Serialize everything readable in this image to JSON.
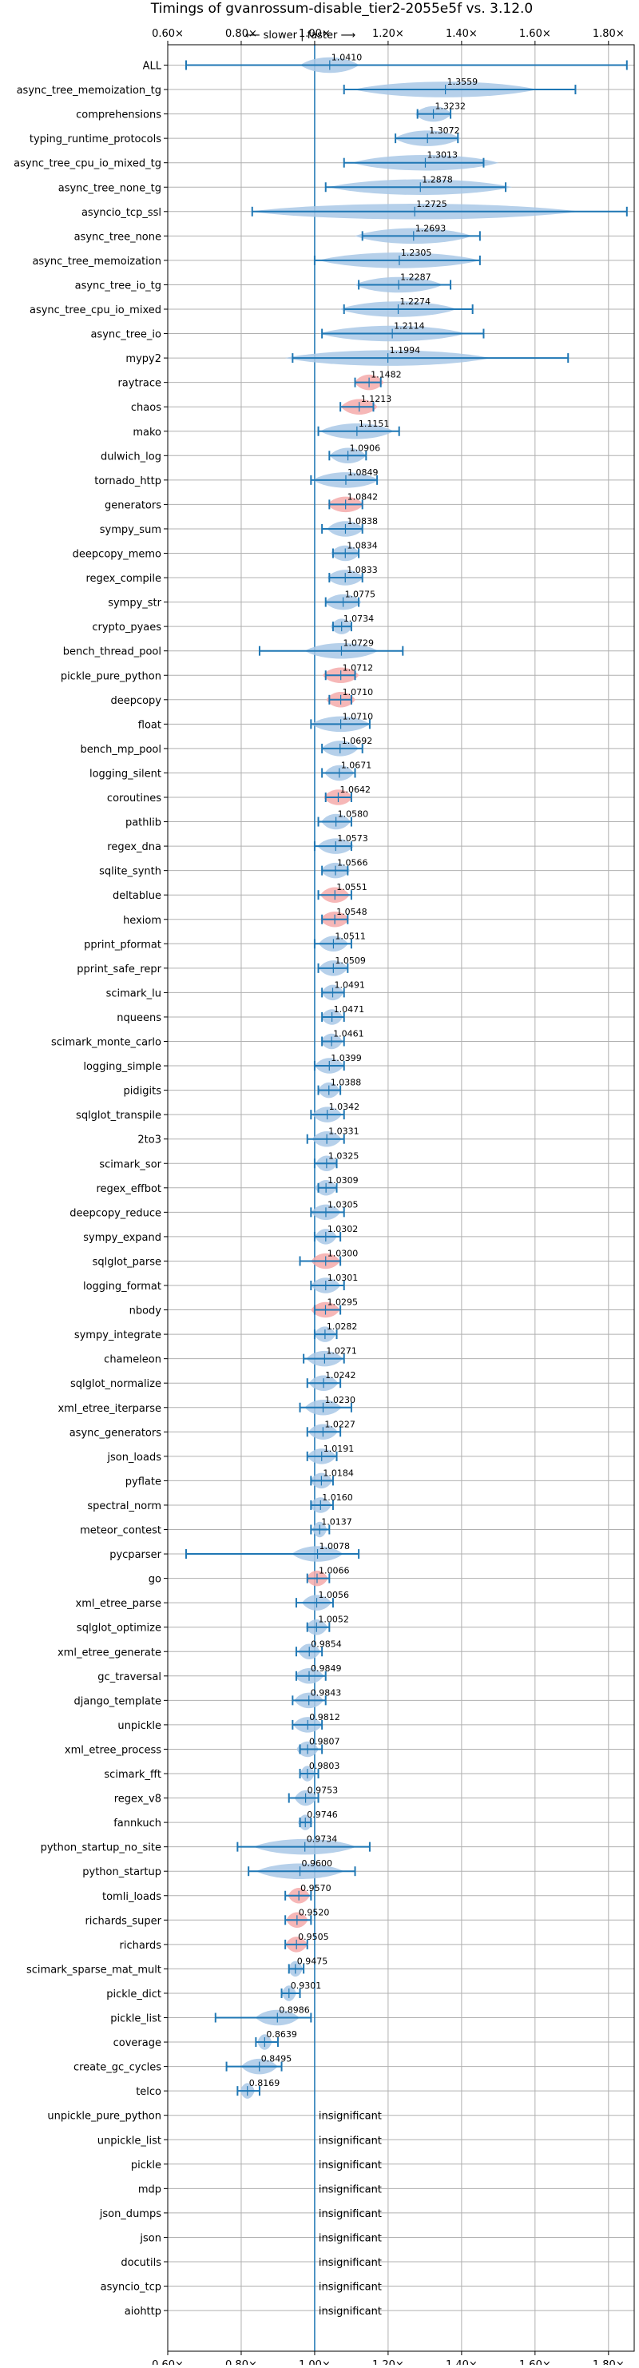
{
  "chart_data": {
    "type": "violin",
    "title": "Timings of gvanrossum-disable_tier2-2055e5f vs. 3.12.0",
    "direction_label": "⟵ slower | faster ⟶",
    "x_range": [
      0.6,
      1.87
    ],
    "x_ticks": [
      0.6,
      0.8,
      1.0,
      1.2,
      1.4,
      1.6,
      1.8
    ],
    "x_tick_labels": [
      "0.60×",
      "0.80×",
      "1.00×",
      "1.20×",
      "1.40×",
      "1.60×",
      "1.80×"
    ],
    "grid": true,
    "reference_line": 1.0,
    "colors": {
      "violin": "#a9c8e6",
      "violin_significant_slow": "#f4aaaa",
      "errorbar": "#1f77b4",
      "grid": "#b0b0b0"
    },
    "benchmarks": [
      {
        "name": "ALL",
        "value": 1.041,
        "label": "1.0410",
        "whisker": [
          0.65,
          1.85
        ],
        "spread": 0.08,
        "color": "blue"
      },
      {
        "name": "async_tree_memoization_tg",
        "value": 1.3559,
        "label": "1.3559",
        "whisker": [
          1.08,
          1.71
        ],
        "spread": 0.25,
        "color": "blue"
      },
      {
        "name": "comprehensions",
        "value": 1.3232,
        "label": "1.3232",
        "whisker": [
          1.28,
          1.37
        ],
        "spread": 0.05,
        "color": "blue"
      },
      {
        "name": "typing_runtime_protocols",
        "value": 1.3072,
        "label": "1.3072",
        "whisker": [
          1.22,
          1.39
        ],
        "spread": 0.09,
        "color": "blue"
      },
      {
        "name": "async_tree_cpu_io_mixed_tg",
        "value": 1.3013,
        "label": "1.3013",
        "whisker": [
          1.08,
          1.46
        ],
        "spread": 0.2,
        "color": "blue"
      },
      {
        "name": "async_tree_none_tg",
        "value": 1.2878,
        "label": "1.2878",
        "whisker": [
          1.03,
          1.52
        ],
        "spread": 0.25,
        "color": "blue"
      },
      {
        "name": "asyncio_tcp_ssl",
        "value": 1.2725,
        "label": "1.2725",
        "whisker": [
          0.83,
          1.85
        ],
        "spread": 0.45,
        "color": "blue"
      },
      {
        "name": "async_tree_none",
        "value": 1.2693,
        "label": "1.2693",
        "whisker": [
          1.13,
          1.45
        ],
        "spread": 0.16,
        "color": "blue"
      },
      {
        "name": "async_tree_memoization",
        "value": 1.2305,
        "label": "1.2305",
        "whisker": [
          1.0,
          1.45
        ],
        "spread": 0.22,
        "color": "blue"
      },
      {
        "name": "async_tree_io_tg",
        "value": 1.2287,
        "label": "1.2287",
        "whisker": [
          1.12,
          1.37
        ],
        "spread": 0.12,
        "color": "blue"
      },
      {
        "name": "async_tree_cpu_io_mixed",
        "value": 1.2274,
        "label": "1.2274",
        "whisker": [
          1.08,
          1.43
        ],
        "spread": 0.16,
        "color": "blue"
      },
      {
        "name": "async_tree_io",
        "value": 1.2114,
        "label": "1.2114",
        "whisker": [
          1.02,
          1.46
        ],
        "spread": 0.2,
        "color": "blue"
      },
      {
        "name": "mypy2",
        "value": 1.1994,
        "label": "1.1994",
        "whisker": [
          0.94,
          1.69
        ],
        "spread": 0.28,
        "color": "blue"
      },
      {
        "name": "raytrace",
        "value": 1.1482,
        "label": "1.1482",
        "whisker": [
          1.11,
          1.18
        ],
        "spread": 0.04,
        "color": "red"
      },
      {
        "name": "chaos",
        "value": 1.1213,
        "label": "1.1213",
        "whisker": [
          1.07,
          1.16
        ],
        "spread": 0.05,
        "color": "red"
      },
      {
        "name": "mako",
        "value": 1.1151,
        "label": "1.1151",
        "whisker": [
          1.01,
          1.23
        ],
        "spread": 0.1,
        "color": "blue"
      },
      {
        "name": "dulwich_log",
        "value": 1.0906,
        "label": "1.0906",
        "whisker": [
          1.04,
          1.14
        ],
        "spread": 0.05,
        "color": "blue"
      },
      {
        "name": "tornado_http",
        "value": 1.0849,
        "label": "1.0849",
        "whisker": [
          0.99,
          1.17
        ],
        "spread": 0.09,
        "color": "blue"
      },
      {
        "name": "generators",
        "value": 1.0842,
        "label": "1.0842",
        "whisker": [
          1.04,
          1.13
        ],
        "spread": 0.05,
        "color": "red"
      },
      {
        "name": "sympy_sum",
        "value": 1.0838,
        "label": "1.0838",
        "whisker": [
          1.02,
          1.13
        ],
        "spread": 0.05,
        "color": "blue"
      },
      {
        "name": "deepcopy_memo",
        "value": 1.0834,
        "label": "1.0834",
        "whisker": [
          1.05,
          1.12
        ],
        "spread": 0.04,
        "color": "blue"
      },
      {
        "name": "regex_compile",
        "value": 1.0833,
        "label": "1.0833",
        "whisker": [
          1.04,
          1.13
        ],
        "spread": 0.05,
        "color": "blue"
      },
      {
        "name": "sympy_str",
        "value": 1.0775,
        "label": "1.0775",
        "whisker": [
          1.03,
          1.12
        ],
        "spread": 0.05,
        "color": "blue"
      },
      {
        "name": "crypto_pyaes",
        "value": 1.0734,
        "label": "1.0734",
        "whisker": [
          1.05,
          1.1
        ],
        "spread": 0.03,
        "color": "blue"
      },
      {
        "name": "bench_thread_pool",
        "value": 1.0729,
        "label": "1.0729",
        "whisker": [
          0.85,
          1.24
        ],
        "spread": 0.1,
        "color": "blue"
      },
      {
        "name": "pickle_pure_python",
        "value": 1.0712,
        "label": "1.0712",
        "whisker": [
          1.03,
          1.11
        ],
        "spread": 0.05,
        "color": "red"
      },
      {
        "name": "deepcopy",
        "value": 1.071,
        "label": "1.0710",
        "whisker": [
          1.04,
          1.1
        ],
        "spread": 0.04,
        "color": "red"
      },
      {
        "name": "float",
        "value": 1.071,
        "label": "1.0710",
        "whisker": [
          0.99,
          1.15
        ],
        "spread": 0.08,
        "color": "blue"
      },
      {
        "name": "bench_mp_pool",
        "value": 1.0692,
        "label": "1.0692",
        "whisker": [
          1.02,
          1.13
        ],
        "spread": 0.05,
        "color": "blue"
      },
      {
        "name": "logging_silent",
        "value": 1.0671,
        "label": "1.0671",
        "whisker": [
          1.02,
          1.11
        ],
        "spread": 0.04,
        "color": "blue"
      },
      {
        "name": "coroutines",
        "value": 1.0642,
        "label": "1.0642",
        "whisker": [
          1.03,
          1.1
        ],
        "spread": 0.04,
        "color": "red"
      },
      {
        "name": "pathlib",
        "value": 1.058,
        "label": "1.0580",
        "whisker": [
          1.01,
          1.1
        ],
        "spread": 0.04,
        "color": "blue"
      },
      {
        "name": "regex_dna",
        "value": 1.0573,
        "label": "1.0573",
        "whisker": [
          1.0,
          1.1
        ],
        "spread": 0.05,
        "color": "blue"
      },
      {
        "name": "sqlite_synth",
        "value": 1.0566,
        "label": "1.0566",
        "whisker": [
          1.02,
          1.09
        ],
        "spread": 0.04,
        "color": "blue"
      },
      {
        "name": "deltablue",
        "value": 1.0551,
        "label": "1.0551",
        "whisker": [
          1.01,
          1.1
        ],
        "spread": 0.04,
        "color": "red"
      },
      {
        "name": "hexiom",
        "value": 1.0548,
        "label": "1.0548",
        "whisker": [
          1.02,
          1.09
        ],
        "spread": 0.04,
        "color": "red"
      },
      {
        "name": "pprint_pformat",
        "value": 1.0511,
        "label": "1.0511",
        "whisker": [
          1.0,
          1.1
        ],
        "spread": 0.04,
        "color": "blue"
      },
      {
        "name": "pprint_safe_repr",
        "value": 1.0509,
        "label": "1.0509",
        "whisker": [
          1.01,
          1.09
        ],
        "spread": 0.04,
        "color": "blue"
      },
      {
        "name": "scimark_lu",
        "value": 1.0491,
        "label": "1.0491",
        "whisker": [
          1.02,
          1.08
        ],
        "spread": 0.03,
        "color": "blue"
      },
      {
        "name": "nqueens",
        "value": 1.0471,
        "label": "1.0471",
        "whisker": [
          1.02,
          1.08
        ],
        "spread": 0.03,
        "color": "blue"
      },
      {
        "name": "scimark_monte_carlo",
        "value": 1.0461,
        "label": "1.0461",
        "whisker": [
          1.02,
          1.08
        ],
        "spread": 0.03,
        "color": "blue"
      },
      {
        "name": "logging_simple",
        "value": 1.0399,
        "label": "1.0399",
        "whisker": [
          1.0,
          1.08
        ],
        "spread": 0.04,
        "color": "blue"
      },
      {
        "name": "pidigits",
        "value": 1.0388,
        "label": "1.0388",
        "whisker": [
          1.01,
          1.07
        ],
        "spread": 0.03,
        "color": "blue"
      },
      {
        "name": "sqlglot_transpile",
        "value": 1.0342,
        "label": "1.0342",
        "whisker": [
          0.99,
          1.08
        ],
        "spread": 0.04,
        "color": "blue"
      },
      {
        "name": "2to3",
        "value": 1.0331,
        "label": "1.0331",
        "whisker": [
          0.98,
          1.08
        ],
        "spread": 0.04,
        "color": "blue"
      },
      {
        "name": "scimark_sor",
        "value": 1.0325,
        "label": "1.0325",
        "whisker": [
          1.0,
          1.06
        ],
        "spread": 0.03,
        "color": "blue"
      },
      {
        "name": "regex_effbot",
        "value": 1.0309,
        "label": "1.0309",
        "whisker": [
          1.01,
          1.06
        ],
        "spread": 0.03,
        "color": "blue"
      },
      {
        "name": "deepcopy_reduce",
        "value": 1.0305,
        "label": "1.0305",
        "whisker": [
          0.99,
          1.08
        ],
        "spread": 0.04,
        "color": "blue"
      },
      {
        "name": "sympy_expand",
        "value": 1.0302,
        "label": "1.0302",
        "whisker": [
          1.0,
          1.07
        ],
        "spread": 0.03,
        "color": "blue"
      },
      {
        "name": "sqlglot_parse",
        "value": 1.03,
        "label": "1.0300",
        "whisker": [
          0.96,
          1.07
        ],
        "spread": 0.04,
        "color": "red"
      },
      {
        "name": "logging_format",
        "value": 1.0301,
        "label": "1.0301",
        "whisker": [
          0.99,
          1.08
        ],
        "spread": 0.04,
        "color": "blue"
      },
      {
        "name": "nbody",
        "value": 1.0295,
        "label": "1.0295",
        "whisker": [
          1.0,
          1.07
        ],
        "spread": 0.04,
        "color": "red"
      },
      {
        "name": "sympy_integrate",
        "value": 1.0282,
        "label": "1.0282",
        "whisker": [
          1.0,
          1.06
        ],
        "spread": 0.03,
        "color": "blue"
      },
      {
        "name": "chameleon",
        "value": 1.0271,
        "label": "1.0271",
        "whisker": [
          0.97,
          1.08
        ],
        "spread": 0.05,
        "color": "blue"
      },
      {
        "name": "sqlglot_normalize",
        "value": 1.0242,
        "label": "1.0242",
        "whisker": [
          0.98,
          1.07
        ],
        "spread": 0.04,
        "color": "blue"
      },
      {
        "name": "xml_etree_iterparse",
        "value": 1.023,
        "label": "1.0230",
        "whisker": [
          0.96,
          1.1
        ],
        "spread": 0.05,
        "color": "blue"
      },
      {
        "name": "async_generators",
        "value": 1.0227,
        "label": "1.0227",
        "whisker": [
          0.98,
          1.07
        ],
        "spread": 0.04,
        "color": "blue"
      },
      {
        "name": "json_loads",
        "value": 1.0191,
        "label": "1.0191",
        "whisker": [
          0.98,
          1.06
        ],
        "spread": 0.04,
        "color": "blue"
      },
      {
        "name": "pyflate",
        "value": 1.0184,
        "label": "1.0184",
        "whisker": [
          0.99,
          1.05
        ],
        "spread": 0.03,
        "color": "blue"
      },
      {
        "name": "spectral_norm",
        "value": 1.016,
        "label": "1.0160",
        "whisker": [
          0.99,
          1.05
        ],
        "spread": 0.03,
        "color": "blue"
      },
      {
        "name": "meteor_contest",
        "value": 1.0137,
        "label": "1.0137",
        "whisker": [
          0.99,
          1.04
        ],
        "spread": 0.02,
        "color": "blue"
      },
      {
        "name": "pycparser",
        "value": 1.0078,
        "label": "1.0078",
        "whisker": [
          0.65,
          1.12
        ],
        "spread": 0.07,
        "color": "blue"
      },
      {
        "name": "go",
        "value": 1.0066,
        "label": "1.0066",
        "whisker": [
          0.98,
          1.04
        ],
        "spread": 0.03,
        "color": "red"
      },
      {
        "name": "xml_etree_parse",
        "value": 1.0056,
        "label": "1.0056",
        "whisker": [
          0.95,
          1.05
        ],
        "spread": 0.04,
        "color": "blue"
      },
      {
        "name": "sqlglot_optimize",
        "value": 1.0052,
        "label": "1.0052",
        "whisker": [
          0.98,
          1.04
        ],
        "spread": 0.03,
        "color": "blue"
      },
      {
        "name": "xml_etree_generate",
        "value": 0.9854,
        "label": "0.9854",
        "whisker": [
          0.95,
          1.02
        ],
        "spread": 0.03,
        "color": "blue"
      },
      {
        "name": "gc_traversal",
        "value": 0.9849,
        "label": "0.9849",
        "whisker": [
          0.95,
          1.03
        ],
        "spread": 0.04,
        "color": "blue"
      },
      {
        "name": "django_template",
        "value": 0.9843,
        "label": "0.9843",
        "whisker": [
          0.94,
          1.03
        ],
        "spread": 0.04,
        "color": "blue"
      },
      {
        "name": "unpickle",
        "value": 0.9812,
        "label": "0.9812",
        "whisker": [
          0.94,
          1.02
        ],
        "spread": 0.04,
        "color": "blue"
      },
      {
        "name": "xml_etree_process",
        "value": 0.9807,
        "label": "0.9807",
        "whisker": [
          0.96,
          1.02
        ],
        "spread": 0.03,
        "color": "blue"
      },
      {
        "name": "scimark_fft",
        "value": 0.9803,
        "label": "0.9803",
        "whisker": [
          0.96,
          1.01
        ],
        "spread": 0.02,
        "color": "blue"
      },
      {
        "name": "regex_v8",
        "value": 0.9753,
        "label": "0.9753",
        "whisker": [
          0.93,
          1.01
        ],
        "spread": 0.03,
        "color": "blue"
      },
      {
        "name": "fannkuch",
        "value": 0.9746,
        "label": "0.9746",
        "whisker": [
          0.96,
          0.99
        ],
        "spread": 0.02,
        "color": "blue"
      },
      {
        "name": "python_startup_no_site",
        "value": 0.9734,
        "label": "0.9734",
        "whisker": [
          0.79,
          1.15
        ],
        "spread": 0.14,
        "color": "blue"
      },
      {
        "name": "python_startup",
        "value": 0.96,
        "label": "0.9600",
        "whisker": [
          0.82,
          1.11
        ],
        "spread": 0.12,
        "color": "blue"
      },
      {
        "name": "tomli_loads",
        "value": 0.957,
        "label": "0.9570",
        "whisker": [
          0.92,
          0.99
        ],
        "spread": 0.03,
        "color": "red"
      },
      {
        "name": "richards_super",
        "value": 0.952,
        "label": "0.9520",
        "whisker": [
          0.92,
          0.99
        ],
        "spread": 0.03,
        "color": "red"
      },
      {
        "name": "richards",
        "value": 0.9505,
        "label": "0.9505",
        "whisker": [
          0.92,
          0.98
        ],
        "spread": 0.03,
        "color": "red"
      },
      {
        "name": "scimark_sparse_mat_mult",
        "value": 0.9475,
        "label": "0.9475",
        "whisker": [
          0.93,
          0.97
        ],
        "spread": 0.02,
        "color": "blue"
      },
      {
        "name": "pickle_dict",
        "value": 0.9301,
        "label": "0.9301",
        "whisker": [
          0.91,
          0.96
        ],
        "spread": 0.02,
        "color": "blue"
      },
      {
        "name": "pickle_list",
        "value": 0.8986,
        "label": "0.8986",
        "whisker": [
          0.73,
          0.99
        ],
        "spread": 0.06,
        "color": "blue"
      },
      {
        "name": "coverage",
        "value": 0.8639,
        "label": "0.8639",
        "whisker": [
          0.84,
          0.9
        ],
        "spread": 0.02,
        "color": "blue"
      },
      {
        "name": "create_gc_cycles",
        "value": 0.8495,
        "label": "0.8495",
        "whisker": [
          0.76,
          0.91
        ],
        "spread": 0.05,
        "color": "blue"
      },
      {
        "name": "telco",
        "value": 0.8169,
        "label": "0.8169",
        "whisker": [
          0.79,
          0.85
        ],
        "spread": 0.02,
        "color": "blue"
      },
      {
        "name": "unpickle_pure_python",
        "value": null,
        "label": "insignificant"
      },
      {
        "name": "unpickle_list",
        "value": null,
        "label": "insignificant"
      },
      {
        "name": "pickle",
        "value": null,
        "label": "insignificant"
      },
      {
        "name": "mdp",
        "value": null,
        "label": "insignificant"
      },
      {
        "name": "json_dumps",
        "value": null,
        "label": "insignificant"
      },
      {
        "name": "json",
        "value": null,
        "label": "insignificant"
      },
      {
        "name": "docutils",
        "value": null,
        "label": "insignificant"
      },
      {
        "name": "asyncio_tcp",
        "value": null,
        "label": "insignificant"
      },
      {
        "name": "aiohttp",
        "value": null,
        "label": "insignificant"
      }
    ]
  }
}
